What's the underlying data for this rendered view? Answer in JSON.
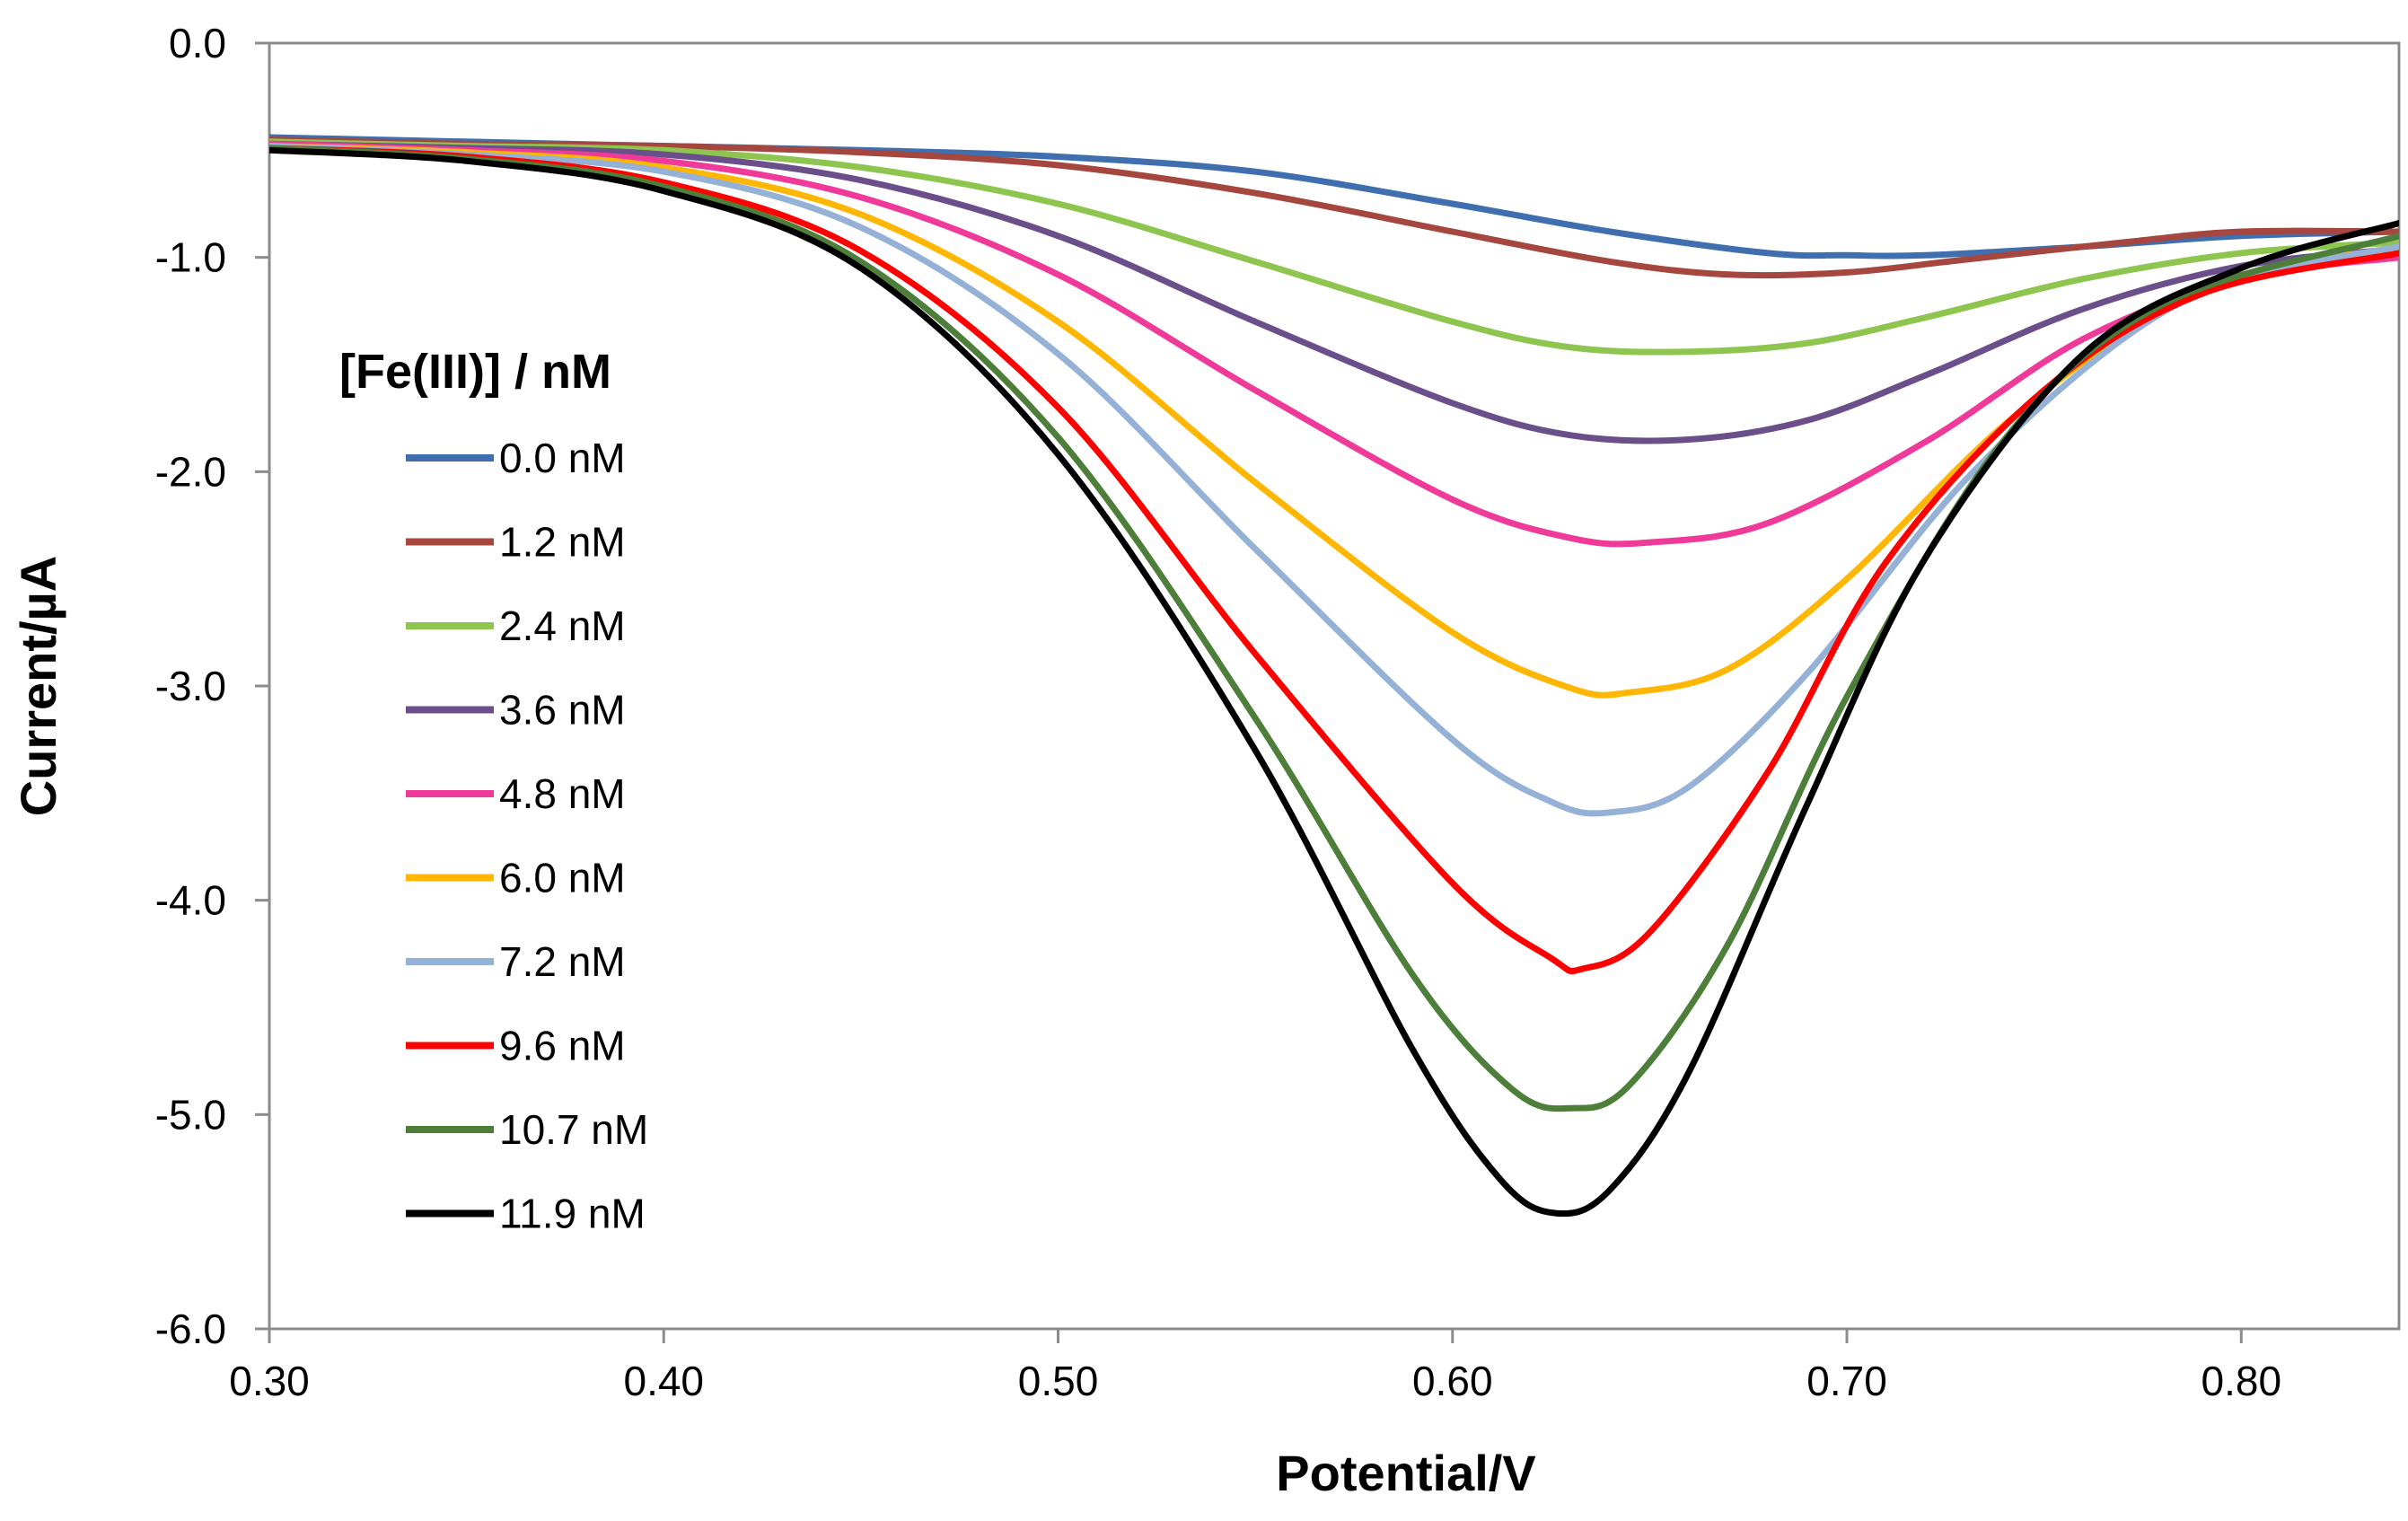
{
  "chart_data": {
    "type": "line",
    "title": "",
    "xlabel": "Potential/V",
    "ylabel": "Current/µA",
    "xlim": [
      0.3,
      0.84
    ],
    "ylim": [
      -6.0,
      0.0
    ],
    "xticks": [
      0.3,
      0.4,
      0.5,
      0.6,
      0.7,
      0.8
    ],
    "xtick_labels": [
      "0.30",
      "0.40",
      "0.50",
      "0.60",
      "0.70",
      "0.80"
    ],
    "yticks": [
      0.0,
      -1.0,
      -2.0,
      -3.0,
      -4.0,
      -5.0,
      -6.0
    ],
    "ytick_labels": [
      "0.0",
      "-1.0",
      "-2.0",
      "-3.0",
      "-4.0",
      "-5.0",
      "-6.0"
    ],
    "grid": false,
    "legend": {
      "title": "[Fe(III)] / nM",
      "placement": "left"
    },
    "series": [
      {
        "name": "0.0 nM",
        "color": "#3f6fae",
        "points": [
          [
            0.3,
            -0.44
          ],
          [
            0.35,
            -0.46
          ],
          [
            0.4,
            -0.48
          ],
          [
            0.45,
            -0.5
          ],
          [
            0.5,
            -0.53
          ],
          [
            0.55,
            -0.6
          ],
          [
            0.6,
            -0.75
          ],
          [
            0.64,
            -0.88
          ],
          [
            0.68,
            -0.98
          ],
          [
            0.7,
            -0.99
          ],
          [
            0.72,
            -0.99
          ],
          [
            0.76,
            -0.95
          ],
          [
            0.8,
            -0.9
          ],
          [
            0.84,
            -0.88
          ]
        ]
      },
      {
        "name": "1.2 nM",
        "color": "#a5473f",
        "points": [
          [
            0.3,
            -0.45
          ],
          [
            0.35,
            -0.47
          ],
          [
            0.4,
            -0.48
          ],
          [
            0.45,
            -0.51
          ],
          [
            0.5,
            -0.57
          ],
          [
            0.55,
            -0.7
          ],
          [
            0.6,
            -0.88
          ],
          [
            0.64,
            -1.02
          ],
          [
            0.67,
            -1.08
          ],
          [
            0.7,
            -1.07
          ],
          [
            0.73,
            -1.01
          ],
          [
            0.77,
            -0.93
          ],
          [
            0.8,
            -0.88
          ],
          [
            0.84,
            -0.88
          ]
        ]
      },
      {
        "name": "2.4 nM",
        "color": "#8dc54f",
        "points": [
          [
            0.3,
            -0.46
          ],
          [
            0.35,
            -0.48
          ],
          [
            0.4,
            -0.5
          ],
          [
            0.45,
            -0.58
          ],
          [
            0.5,
            -0.75
          ],
          [
            0.55,
            -1.02
          ],
          [
            0.6,
            -1.3
          ],
          [
            0.63,
            -1.42
          ],
          [
            0.66,
            -1.44
          ],
          [
            0.69,
            -1.4
          ],
          [
            0.72,
            -1.28
          ],
          [
            0.76,
            -1.1
          ],
          [
            0.8,
            -0.98
          ],
          [
            0.84,
            -0.93
          ]
        ]
      },
      {
        "name": "3.6 nM",
        "color": "#6b4f8b",
        "points": [
          [
            0.3,
            -0.47
          ],
          [
            0.35,
            -0.49
          ],
          [
            0.4,
            -0.52
          ],
          [
            0.45,
            -0.64
          ],
          [
            0.5,
            -0.9
          ],
          [
            0.55,
            -1.3
          ],
          [
            0.6,
            -1.68
          ],
          [
            0.63,
            -1.83
          ],
          [
            0.66,
            -1.85
          ],
          [
            0.69,
            -1.76
          ],
          [
            0.72,
            -1.55
          ],
          [
            0.76,
            -1.24
          ],
          [
            0.8,
            -1.04
          ],
          [
            0.84,
            -0.96
          ]
        ]
      },
      {
        "name": "4.8 nM",
        "color": "#f03a9a",
        "points": [
          [
            0.3,
            -0.47
          ],
          [
            0.35,
            -0.5
          ],
          [
            0.4,
            -0.55
          ],
          [
            0.45,
            -0.72
          ],
          [
            0.5,
            -1.08
          ],
          [
            0.55,
            -1.62
          ],
          [
            0.6,
            -2.13
          ],
          [
            0.63,
            -2.31
          ],
          [
            0.65,
            -2.33
          ],
          [
            0.68,
            -2.24
          ],
          [
            0.72,
            -1.86
          ],
          [
            0.76,
            -1.38
          ],
          [
            0.8,
            -1.1
          ],
          [
            0.84,
            -1.0
          ]
        ]
      },
      {
        "name": "6.0 nM",
        "color": "#ffb703",
        "points": [
          [
            0.3,
            -0.48
          ],
          [
            0.35,
            -0.51
          ],
          [
            0.4,
            -0.58
          ],
          [
            0.45,
            -0.8
          ],
          [
            0.5,
            -1.3
          ],
          [
            0.55,
            -2.05
          ],
          [
            0.6,
            -2.75
          ],
          [
            0.63,
            -3.01
          ],
          [
            0.645,
            -3.03
          ],
          [
            0.67,
            -2.92
          ],
          [
            0.7,
            -2.5
          ],
          [
            0.74,
            -1.78
          ],
          [
            0.78,
            -1.24
          ],
          [
            0.81,
            -1.04
          ],
          [
            0.84,
            -0.96
          ]
        ]
      },
      {
        "name": "7.2 nM",
        "color": "#95b1d6",
        "points": [
          [
            0.3,
            -0.48
          ],
          [
            0.35,
            -0.52
          ],
          [
            0.4,
            -0.6
          ],
          [
            0.45,
            -0.86
          ],
          [
            0.5,
            -1.45
          ],
          [
            0.55,
            -2.36
          ],
          [
            0.6,
            -3.25
          ],
          [
            0.625,
            -3.54
          ],
          [
            0.64,
            -3.59
          ],
          [
            0.66,
            -3.47
          ],
          [
            0.69,
            -2.94
          ],
          [
            0.73,
            -2.04
          ],
          [
            0.77,
            -1.38
          ],
          [
            0.8,
            -1.1
          ],
          [
            0.84,
            -0.95
          ]
        ]
      },
      {
        "name": "9.6 nM",
        "color": "#ff0000",
        "points": [
          [
            0.3,
            -0.49
          ],
          [
            0.35,
            -0.53
          ],
          [
            0.4,
            -0.65
          ],
          [
            0.45,
            -0.97
          ],
          [
            0.5,
            -1.7
          ],
          [
            0.55,
            -2.85
          ],
          [
            0.6,
            -3.92
          ],
          [
            0.625,
            -4.27
          ],
          [
            0.633,
            -4.32
          ],
          [
            0.65,
            -4.15
          ],
          [
            0.68,
            -3.4
          ],
          [
            0.71,
            -2.42
          ],
          [
            0.75,
            -1.62
          ],
          [
            0.79,
            -1.17
          ],
          [
            0.84,
            -0.98
          ]
        ]
      },
      {
        "name": "10.7 nM",
        "color": "#4e7f3a",
        "points": [
          [
            0.3,
            -0.49
          ],
          [
            0.35,
            -0.54
          ],
          [
            0.4,
            -0.67
          ],
          [
            0.45,
            -1.02
          ],
          [
            0.5,
            -1.84
          ],
          [
            0.55,
            -3.15
          ],
          [
            0.59,
            -4.35
          ],
          [
            0.615,
            -4.88
          ],
          [
            0.63,
            -4.97
          ],
          [
            0.645,
            -4.86
          ],
          [
            0.67,
            -4.2
          ],
          [
            0.7,
            -3.05
          ],
          [
            0.74,
            -1.85
          ],
          [
            0.78,
            -1.22
          ],
          [
            0.84,
            -0.9
          ]
        ]
      },
      {
        "name": "11.9 nM",
        "color": "#000000",
        "points": [
          [
            0.3,
            -0.5
          ],
          [
            0.35,
            -0.55
          ],
          [
            0.4,
            -0.69
          ],
          [
            0.45,
            -1.05
          ],
          [
            0.5,
            -1.92
          ],
          [
            0.55,
            -3.3
          ],
          [
            0.59,
            -4.7
          ],
          [
            0.612,
            -5.3
          ],
          [
            0.626,
            -5.46
          ],
          [
            0.64,
            -5.35
          ],
          [
            0.66,
            -4.8
          ],
          [
            0.69,
            -3.55
          ],
          [
            0.72,
            -2.4
          ],
          [
            0.76,
            -1.45
          ],
          [
            0.8,
            -1.05
          ],
          [
            0.84,
            -0.84
          ]
        ]
      }
    ]
  }
}
